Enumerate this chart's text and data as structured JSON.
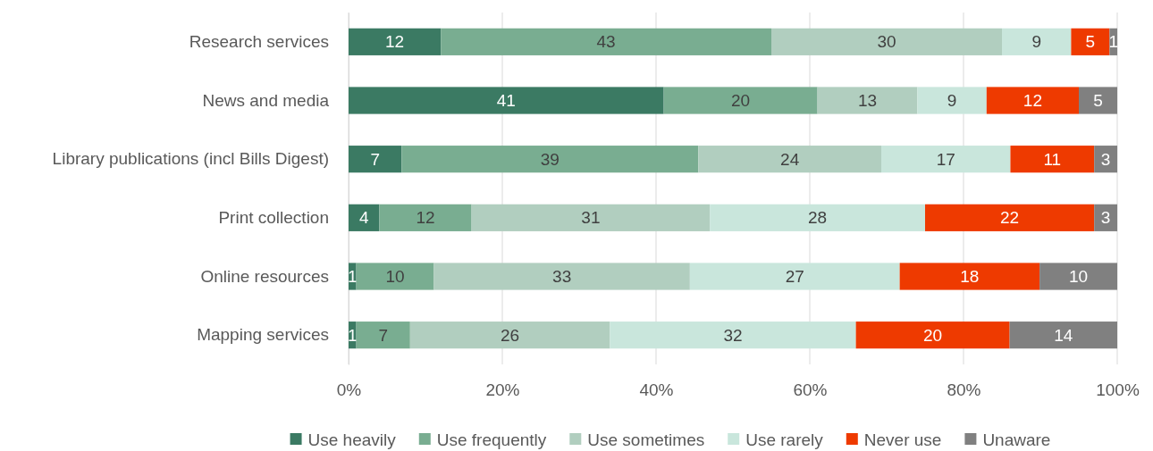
{
  "chart_data": {
    "type": "bar",
    "orientation": "horizontal",
    "stacked": true,
    "categories": [
      "Research services",
      "News and media",
      "Library publications (incl Bills Digest)",
      "Print collection",
      "Online resources",
      "Mapping services"
    ],
    "series": [
      {
        "name": "Use heavily",
        "color": "#3b7a63",
        "values": [
          12,
          41,
          6.9,
          4,
          1.0,
          1
        ],
        "value_labels": [
          "12",
          "41",
          "7",
          "4",
          "1",
          "1"
        ]
      },
      {
        "name": "Use frequently",
        "color": "#79ad91",
        "values": [
          43,
          20,
          38.6,
          12,
          10.1,
          7
        ],
        "value_labels": [
          "43",
          "20",
          "39",
          "12",
          "10",
          "7"
        ]
      },
      {
        "name": "Use sometimes",
        "color": "#b1cebf",
        "values": [
          30,
          13,
          23.8,
          31,
          33.3,
          26
        ],
        "value_labels": [
          "30",
          "13",
          "24",
          "31",
          "33",
          "26"
        ]
      },
      {
        "name": "Use rarely",
        "color": "#c9e6dc",
        "values": [
          9,
          9,
          16.8,
          28,
          27.3,
          32
        ],
        "value_labels": [
          "9",
          "9",
          "17",
          "28",
          "27",
          "32"
        ]
      },
      {
        "name": "Never use",
        "color": "#ee3a00",
        "values": [
          5,
          12,
          10.9,
          22,
          18.2,
          20
        ],
        "value_labels": [
          "5",
          "12",
          "11",
          "22",
          "18",
          "20"
        ]
      },
      {
        "name": "Unaware",
        "color": "#808080",
        "values": [
          1,
          5,
          3.0,
          3,
          10.1,
          14
        ],
        "value_labels": [
          "1",
          "5",
          "3",
          "3",
          "10",
          "14"
        ]
      }
    ],
    "xlim": [
      0,
      100
    ],
    "xticks": [
      {
        "value": 0,
        "label": "0%"
      },
      {
        "value": 20,
        "label": "20%"
      },
      {
        "value": 40,
        "label": "40%"
      },
      {
        "value": 60,
        "label": "60%"
      },
      {
        "value": 80,
        "label": "80%"
      },
      {
        "value": 100,
        "label": "100%"
      }
    ],
    "grid": "x",
    "legend": "bottom"
  }
}
